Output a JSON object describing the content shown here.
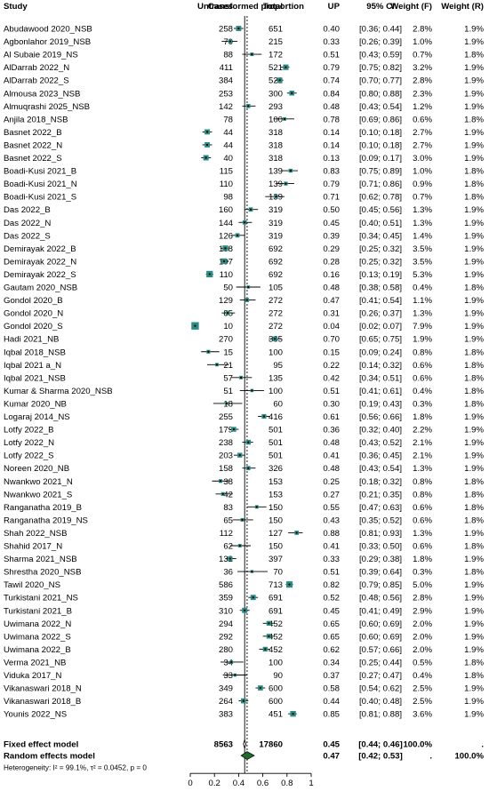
{
  "chart_data": {
    "type": "forest",
    "title": "",
    "xlabel": "",
    "xlim": [
      0,
      1
    ],
    "xticks": [
      "0",
      "0.2",
      "0.4",
      "0.6",
      "0.8",
      "1"
    ],
    "fixed_ref": 0.45,
    "random_ref": 0.47,
    "columns": {
      "study": "Study",
      "cases": "Cases",
      "total": "Total",
      "plot": "Untransformed proportion",
      "up": "UP",
      "ci": "95% CI",
      "wf": "Weight (F)",
      "wr": "Weight (R)"
    },
    "studies": [
      {
        "study": "Abudawood 2020_NSB",
        "cases": "258",
        "total": "651",
        "up": 0.4,
        "lo": 0.36,
        "hi": 0.44,
        "up_label": "0.40",
        "ci_label": "[0.36; 0.44]",
        "wf": "2.8%",
        "wr": "1.9%"
      },
      {
        "study": "Agbonlahor 2019_NSB",
        "cases": "70",
        "total": "215",
        "up": 0.33,
        "lo": 0.26,
        "hi": 0.39,
        "up_label": "0.33",
        "ci_label": "[0.26; 0.39]",
        "wf": "1.0%",
        "wr": "1.9%"
      },
      {
        "study": "Al Subaie 2019_NS",
        "cases": "88",
        "total": "172",
        "up": 0.51,
        "lo": 0.43,
        "hi": 0.59,
        "up_label": "0.51",
        "ci_label": "[0.43; 0.59]",
        "wf": "0.7%",
        "wr": "1.8%"
      },
      {
        "study": "AlDarrab 2022_N",
        "cases": "411",
        "total": "521",
        "up": 0.79,
        "lo": 0.75,
        "hi": 0.82,
        "up_label": "0.79",
        "ci_label": "[0.75; 0.82]",
        "wf": "3.2%",
        "wr": "1.9%"
      },
      {
        "study": "AlDarrab 2022_S",
        "cases": "384",
        "total": "521",
        "up": 0.74,
        "lo": 0.7,
        "hi": 0.77,
        "up_label": "0.74",
        "ci_label": "[0.70; 0.77]",
        "wf": "2.8%",
        "wr": "1.9%"
      },
      {
        "study": "Almousa 2023_NSB",
        "cases": "253",
        "total": "300",
        "up": 0.84,
        "lo": 0.8,
        "hi": 0.88,
        "up_label": "0.84",
        "ci_label": "[0.80; 0.88]",
        "wf": "2.3%",
        "wr": "1.9%"
      },
      {
        "study": "Almuqrashi 2025_NSB",
        "cases": "142",
        "total": "293",
        "up": 0.48,
        "lo": 0.43,
        "hi": 0.54,
        "up_label": "0.48",
        "ci_label": "[0.43; 0.54]",
        "wf": "1.2%",
        "wr": "1.9%"
      },
      {
        "study": "Anjila 2018_NSB",
        "cases": "78",
        "total": "100",
        "up": 0.78,
        "lo": 0.69,
        "hi": 0.86,
        "up_label": "0.78",
        "ci_label": "[0.69; 0.86]",
        "wf": "0.6%",
        "wr": "1.8%"
      },
      {
        "study": "Basnet 2022_B",
        "cases": "44",
        "total": "318",
        "up": 0.14,
        "lo": 0.1,
        "hi": 0.18,
        "up_label": "0.14",
        "ci_label": "[0.10; 0.18]",
        "wf": "2.7%",
        "wr": "1.9%"
      },
      {
        "study": "Basnet 2022_N",
        "cases": "44",
        "total": "318",
        "up": 0.14,
        "lo": 0.1,
        "hi": 0.18,
        "up_label": "0.14",
        "ci_label": "[0.10; 0.18]",
        "wf": "2.7%",
        "wr": "1.9%"
      },
      {
        "study": "Basnet 2022_S",
        "cases": "40",
        "total": "318",
        "up": 0.13,
        "lo": 0.09,
        "hi": 0.17,
        "up_label": "0.13",
        "ci_label": "[0.09; 0.17]",
        "wf": "3.0%",
        "wr": "1.9%"
      },
      {
        "study": "Boadi-Kusi 2021_B",
        "cases": "115",
        "total": "139",
        "up": 0.83,
        "lo": 0.75,
        "hi": 0.89,
        "up_label": "0.83",
        "ci_label": "[0.75; 0.89]",
        "wf": "1.0%",
        "wr": "1.8%"
      },
      {
        "study": "Boadi-Kusi 2021_N",
        "cases": "110",
        "total": "139",
        "up": 0.79,
        "lo": 0.71,
        "hi": 0.86,
        "up_label": "0.79",
        "ci_label": "[0.71; 0.86]",
        "wf": "0.9%",
        "wr": "1.8%"
      },
      {
        "study": "Boadi-Kusi 2021_S",
        "cases": "98",
        "total": "139",
        "up": 0.71,
        "lo": 0.62,
        "hi": 0.78,
        "up_label": "0.71",
        "ci_label": "[0.62; 0.78]",
        "wf": "0.7%",
        "wr": "1.8%"
      },
      {
        "study": "Das 2022_B",
        "cases": "160",
        "total": "319",
        "up": 0.5,
        "lo": 0.45,
        "hi": 0.56,
        "up_label": "0.50",
        "ci_label": "[0.45; 0.56]",
        "wf": "1.3%",
        "wr": "1.9%"
      },
      {
        "study": "Das 2022_N",
        "cases": "144",
        "total": "319",
        "up": 0.45,
        "lo": 0.4,
        "hi": 0.51,
        "up_label": "0.45",
        "ci_label": "[0.40; 0.51]",
        "wf": "1.3%",
        "wr": "1.9%"
      },
      {
        "study": "Das 2022_S",
        "cases": "126",
        "total": "319",
        "up": 0.39,
        "lo": 0.34,
        "hi": 0.45,
        "up_label": "0.39",
        "ci_label": "[0.34; 0.45]",
        "wf": "1.4%",
        "wr": "1.9%"
      },
      {
        "study": "Demirayak 2022_B",
        "cases": "198",
        "total": "692",
        "up": 0.29,
        "lo": 0.25,
        "hi": 0.32,
        "up_label": "0.29",
        "ci_label": "[0.25; 0.32]",
        "wf": "3.5%",
        "wr": "1.9%"
      },
      {
        "study": "Demirayak 2022_N",
        "cases": "197",
        "total": "692",
        "up": 0.28,
        "lo": 0.25,
        "hi": 0.32,
        "up_label": "0.28",
        "ci_label": "[0.25; 0.32]",
        "wf": "3.5%",
        "wr": "1.9%"
      },
      {
        "study": "Demirayak 2022_S",
        "cases": "110",
        "total": "692",
        "up": 0.16,
        "lo": 0.13,
        "hi": 0.19,
        "up_label": "0.16",
        "ci_label": "[0.13; 0.19]",
        "wf": "5.3%",
        "wr": "1.9%"
      },
      {
        "study": "Gautam 2020_NSB",
        "cases": "50",
        "total": "105",
        "up": 0.48,
        "lo": 0.38,
        "hi": 0.58,
        "up_label": "0.48",
        "ci_label": "[0.38; 0.58]",
        "wf": "0.4%",
        "wr": "1.8%"
      },
      {
        "study": "Gondol 2020_B",
        "cases": "129",
        "total": "272",
        "up": 0.47,
        "lo": 0.41,
        "hi": 0.54,
        "up_label": "0.47",
        "ci_label": "[0.41; 0.54]",
        "wf": "1.1%",
        "wr": "1.9%"
      },
      {
        "study": "Gondol 2020_N",
        "cases": "85",
        "total": "272",
        "up": 0.31,
        "lo": 0.26,
        "hi": 0.37,
        "up_label": "0.31",
        "ci_label": "[0.26; 0.37]",
        "wf": "1.3%",
        "wr": "1.9%"
      },
      {
        "study": "Gondol 2020_S",
        "cases": "10",
        "total": "272",
        "up": 0.04,
        "lo": 0.02,
        "hi": 0.07,
        "up_label": "0.04",
        "ci_label": "[0.02; 0.07]",
        "wf": "7.9%",
        "wr": "1.9%"
      },
      {
        "study": "Hadi 2021_NB",
        "cases": "270",
        "total": "385",
        "up": 0.7,
        "lo": 0.65,
        "hi": 0.75,
        "up_label": "0.70",
        "ci_label": "[0.65; 0.75]",
        "wf": "1.9%",
        "wr": "1.9%"
      },
      {
        "study": "Iqbal 2018_NSB",
        "cases": "15",
        "total": "100",
        "up": 0.15,
        "lo": 0.09,
        "hi": 0.24,
        "up_label": "0.15",
        "ci_label": "[0.09; 0.24]",
        "wf": "0.8%",
        "wr": "1.8%"
      },
      {
        "study": "Iqbal 2021 a_N",
        "cases": "21",
        "total": "95",
        "up": 0.22,
        "lo": 0.14,
        "hi": 0.32,
        "up_label": "0.22",
        "ci_label": "[0.14; 0.32]",
        "wf": "0.6%",
        "wr": "1.8%"
      },
      {
        "study": "Iqbal 2021_NSB",
        "cases": "57",
        "total": "135",
        "up": 0.42,
        "lo": 0.34,
        "hi": 0.51,
        "up_label": "0.42",
        "ci_label": "[0.34; 0.51]",
        "wf": "0.6%",
        "wr": "1.8%"
      },
      {
        "study": "Kumar & Sharma 2020_NSB",
        "cases": "51",
        "total": "100",
        "up": 0.51,
        "lo": 0.41,
        "hi": 0.61,
        "up_label": "0.51",
        "ci_label": "[0.41; 0.61]",
        "wf": "0.4%",
        "wr": "1.8%"
      },
      {
        "study": "Kumar 2020_NB",
        "cases": "18",
        "total": "60",
        "up": 0.3,
        "lo": 0.19,
        "hi": 0.43,
        "up_label": "0.30",
        "ci_label": "[0.19; 0.43]",
        "wf": "0.3%",
        "wr": "1.8%"
      },
      {
        "study": "Logaraj 2014_NS",
        "cases": "255",
        "total": "416",
        "up": 0.61,
        "lo": 0.56,
        "hi": 0.66,
        "up_label": "0.61",
        "ci_label": "[0.56; 0.66]",
        "wf": "1.8%",
        "wr": "1.9%"
      },
      {
        "study": "Lotfy 2022_B",
        "cases": "179",
        "total": "501",
        "up": 0.36,
        "lo": 0.32,
        "hi": 0.4,
        "up_label": "0.36",
        "ci_label": "[0.32; 0.40]",
        "wf": "2.2%",
        "wr": "1.9%"
      },
      {
        "study": "Lotfy 2022_N",
        "cases": "238",
        "total": "501",
        "up": 0.48,
        "lo": 0.43,
        "hi": 0.52,
        "up_label": "0.48",
        "ci_label": "[0.43; 0.52]",
        "wf": "2.1%",
        "wr": "1.9%"
      },
      {
        "study": "Lotfy 2022_S",
        "cases": "203",
        "total": "501",
        "up": 0.41,
        "lo": 0.36,
        "hi": 0.45,
        "up_label": "0.41",
        "ci_label": "[0.36; 0.45]",
        "wf": "2.1%",
        "wr": "1.9%"
      },
      {
        "study": "Noreen 2020_NB",
        "cases": "158",
        "total": "326",
        "up": 0.48,
        "lo": 0.43,
        "hi": 0.54,
        "up_label": "0.48",
        "ci_label": "[0.43; 0.54]",
        "wf": "1.3%",
        "wr": "1.9%"
      },
      {
        "study": "Nwankwo 2021_N",
        "cases": "38",
        "total": "153",
        "up": 0.25,
        "lo": 0.18,
        "hi": 0.32,
        "up_label": "0.25",
        "ci_label": "[0.18; 0.32]",
        "wf": "0.8%",
        "wr": "1.8%"
      },
      {
        "study": "Nwankwo 2021_S",
        "cases": "42",
        "total": "153",
        "up": 0.27,
        "lo": 0.21,
        "hi": 0.35,
        "up_label": "0.27",
        "ci_label": "[0.21; 0.35]",
        "wf": "0.8%",
        "wr": "1.8%"
      },
      {
        "study": "Ranganatha 2019_B",
        "cases": "83",
        "total": "150",
        "up": 0.55,
        "lo": 0.47,
        "hi": 0.63,
        "up_label": "0.55",
        "ci_label": "[0.47; 0.63]",
        "wf": "0.6%",
        "wr": "1.8%"
      },
      {
        "study": "Ranganatha 2019_NS",
        "cases": "65",
        "total": "150",
        "up": 0.43,
        "lo": 0.35,
        "hi": 0.52,
        "up_label": "0.43",
        "ci_label": "[0.35; 0.52]",
        "wf": "0.6%",
        "wr": "1.8%"
      },
      {
        "study": "Shah 2022_NSB",
        "cases": "112",
        "total": "127",
        "up": 0.88,
        "lo": 0.81,
        "hi": 0.93,
        "up_label": "0.88",
        "ci_label": "[0.81; 0.93]",
        "wf": "1.3%",
        "wr": "1.9%"
      },
      {
        "study": "Shahid 2017_N",
        "cases": "62",
        "total": "150",
        "up": 0.41,
        "lo": 0.33,
        "hi": 0.5,
        "up_label": "0.41",
        "ci_label": "[0.33; 0.50]",
        "wf": "0.6%",
        "wr": "1.8%"
      },
      {
        "study": "Sharma 2021_NSB",
        "cases": "132",
        "total": "397",
        "up": 0.33,
        "lo": 0.29,
        "hi": 0.38,
        "up_label": "0.33",
        "ci_label": "[0.29; 0.38]",
        "wf": "1.8%",
        "wr": "1.9%"
      },
      {
        "study": "Shrestha 2020_NSB",
        "cases": "36",
        "total": "70",
        "up": 0.51,
        "lo": 0.39,
        "hi": 0.64,
        "up_label": "0.51",
        "ci_label": "[0.39; 0.64]",
        "wf": "0.3%",
        "wr": "1.8%"
      },
      {
        "study": "Tawil 2020_NS",
        "cases": "586",
        "total": "713",
        "up": 0.82,
        "lo": 0.79,
        "hi": 0.85,
        "up_label": "0.82",
        "ci_label": "[0.79; 0.85]",
        "wf": "5.0%",
        "wr": "1.9%"
      },
      {
        "study": "Turkistani 2021_NS",
        "cases": "359",
        "total": "691",
        "up": 0.52,
        "lo": 0.48,
        "hi": 0.56,
        "up_label": "0.52",
        "ci_label": "[0.48; 0.56]",
        "wf": "2.8%",
        "wr": "1.9%"
      },
      {
        "study": "Turkistani 2021_B",
        "cases": "310",
        "total": "691",
        "up": 0.45,
        "lo": 0.41,
        "hi": 0.49,
        "up_label": "0.45",
        "ci_label": "[0.41; 0.49]",
        "wf": "2.9%",
        "wr": "1.9%"
      },
      {
        "study": "Uwimana 2022_N",
        "cases": "294",
        "total": "452",
        "up": 0.65,
        "lo": 0.6,
        "hi": 0.69,
        "up_label": "0.65",
        "ci_label": "[0.60; 0.69]",
        "wf": "2.0%",
        "wr": "1.9%"
      },
      {
        "study": "Uwimana 2022_S",
        "cases": "292",
        "total": "452",
        "up": 0.65,
        "lo": 0.6,
        "hi": 0.69,
        "up_label": "0.65",
        "ci_label": "[0.60; 0.69]",
        "wf": "2.0%",
        "wr": "1.9%"
      },
      {
        "study": "Uwimana 2022_B",
        "cases": "280",
        "total": "452",
        "up": 0.62,
        "lo": 0.57,
        "hi": 0.66,
        "up_label": "0.62",
        "ci_label": "[0.57; 0.66]",
        "wf": "2.0%",
        "wr": "1.9%"
      },
      {
        "study": "Verma 2021_NB",
        "cases": "34",
        "total": "100",
        "up": 0.34,
        "lo": 0.25,
        "hi": 0.44,
        "up_label": "0.34",
        "ci_label": "[0.25; 0.44]",
        "wf": "0.5%",
        "wr": "1.8%"
      },
      {
        "study": "Viduka 2017_N",
        "cases": "33",
        "total": "90",
        "up": 0.37,
        "lo": 0.27,
        "hi": 0.47,
        "up_label": "0.37",
        "ci_label": "[0.27; 0.47]",
        "wf": "0.4%",
        "wr": "1.8%"
      },
      {
        "study": "Vikanaswari 2018_N",
        "cases": "349",
        "total": "600",
        "up": 0.58,
        "lo": 0.54,
        "hi": 0.62,
        "up_label": "0.58",
        "ci_label": "[0.54; 0.62]",
        "wf": "2.5%",
        "wr": "1.9%"
      },
      {
        "study": "Vikanaswari 2018_B",
        "cases": "264",
        "total": "600",
        "up": 0.44,
        "lo": 0.4,
        "hi": 0.48,
        "up_label": "0.44",
        "ci_label": "[0.40; 0.48]",
        "wf": "2.5%",
        "wr": "1.9%"
      },
      {
        "study": "Younis 2022_NS",
        "cases": "383",
        "total": "451",
        "up": 0.85,
        "lo": 0.81,
        "hi": 0.88,
        "up_label": "0.85",
        "ci_label": "[0.81; 0.88]",
        "wf": "3.6%",
        "wr": "1.9%"
      }
    ],
    "fixed": {
      "label": "Fixed effect model",
      "cases": "8563",
      "total": "17860",
      "up": 0.45,
      "lo": 0.44,
      "hi": 0.46,
      "up_label": "0.45",
      "ci_label": "[0.44; 0.46]",
      "wf": "100.0%",
      "wr": "."
    },
    "random": {
      "label": "Random effects model",
      "cases": "",
      "total": "",
      "up": 0.47,
      "lo": 0.42,
      "hi": 0.53,
      "up_label": "0.47",
      "ci_label": "[0.42; 0.53]",
      "wf": ".",
      "wr": "100.0%"
    },
    "heterogeneity": "Heterogeneity: I² = 99.1%, τ² = 0.0452, p = 0",
    "colors": {
      "box": "#2a8c84",
      "diamond": "#1f6b2a",
      "text": "#000000",
      "line": "#000000"
    }
  }
}
